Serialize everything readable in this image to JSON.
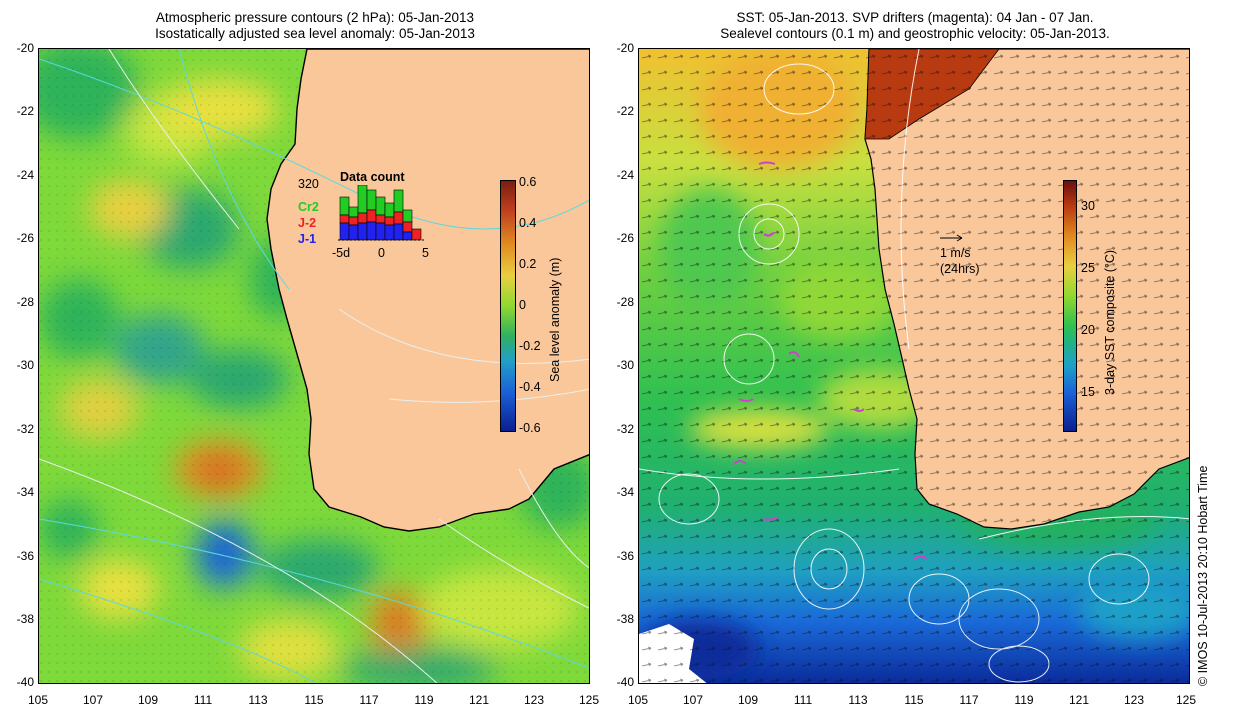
{
  "left_panel": {
    "title_line1": "Atmospheric pressure contours (2 hPa): 05-Jan-2013",
    "title_line2": "Isostatically adjusted sea level anomaly: 05-Jan-2013",
    "colorbar_label": "Sea level anomaly (m)",
    "colorbar_ticks": [
      "0.6",
      "0.4",
      "0.2",
      "0",
      "-0.2",
      "-0.4",
      "-0.6"
    ],
    "inset": {
      "title": "Data count",
      "max_count": "320",
      "x_ticks": [
        "-5d",
        "0",
        "5"
      ],
      "legend": [
        {
          "label": "Cr2",
          "color": "#22cc22"
        },
        {
          "label": "J-2",
          "color": "#ee2222"
        },
        {
          "label": "J-1",
          "color": "#2222ee"
        }
      ]
    }
  },
  "right_panel": {
    "title_line1": "SST: 05-Jan-2013. SVP drifters (magenta): 04 Jan - 07 Jan.",
    "title_line2": "Sealevel contours (0.1 m) and geostrophic velocity: 05-Jan-2013.",
    "colorbar_label": "3-day SST composite (°C)",
    "colorbar_ticks": [
      "30",
      "25",
      "20",
      "15"
    ],
    "scale_arrow_label_1": "1 m/s",
    "scale_arrow_label_2": "(24hrs)"
  },
  "axes": {
    "y_ticks": [
      "-20",
      "-22",
      "-24",
      "-26",
      "-28",
      "-30",
      "-32",
      "-34",
      "-36",
      "-38",
      "-40"
    ],
    "x_ticks": [
      "105",
      "107",
      "109",
      "111",
      "113",
      "115",
      "117",
      "119",
      "121",
      "123",
      "125"
    ]
  },
  "credit": "© IMOS 10-Jul-2013 20:10 Hobart Time",
  "colors": {
    "land": "#fac79b",
    "ocean_green": "#33cc33",
    "ocean_yellow": "#e0e040",
    "cold_blue": "#1a4fd6",
    "warm_red": "#b83a10"
  }
}
